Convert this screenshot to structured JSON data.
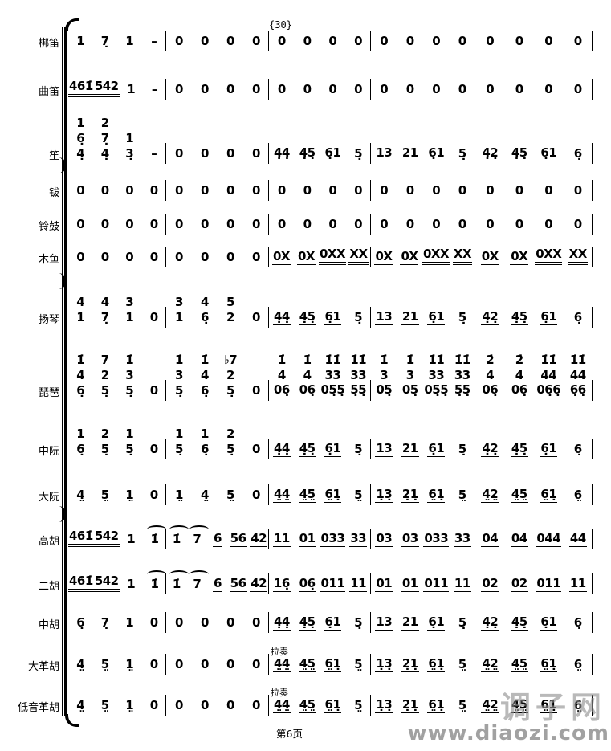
{
  "page": {
    "rehearsal_mark": "{30}",
    "footer": "第6页",
    "watermark_cn": "调子网",
    "watermark_url": "www.diaozi.com"
  },
  "score": {
    "rows": [
      {
        "label": "梆笛",
        "measures": [
          [
            [
              "1",
              "7̣",
              "1",
              "–"
            ]
          ],
          [
            [
              "0",
              "0",
              "0",
              "0"
            ]
          ],
          [
            [
              "0",
              "0",
              "0",
              "0"
            ]
          ],
          [
            [
              "0",
              "0",
              "0",
              "0"
            ]
          ],
          [
            [
              "0",
              "0",
              "0",
              "0"
            ]
          ]
        ]
      },
      {
        "label": "曲笛",
        "measures": [
          [
            [
              "461̇=",
              "542=",
              "1",
              "–"
            ]
          ],
          [
            [
              "0",
              "0",
              "0",
              "0"
            ]
          ],
          [
            [
              "0",
              "0",
              "0",
              "0"
            ]
          ],
          [
            [
              "0",
              "0",
              "0",
              "0"
            ]
          ],
          [
            [
              "0",
              "0",
              "0",
              "0"
            ]
          ]
        ]
      },
      {
        "label": "笙",
        "measures": [
          [
            [
              "1",
              "2",
              "",
              ""
            ],
            [
              "6̣",
              "7̣",
              "1",
              ""
            ],
            [
              "4̣",
              "4̣",
              "3̣",
              "–"
            ]
          ],
          [
            [
              "0",
              "0",
              "0",
              "0"
            ]
          ],
          [
            [
              "4̣4̣_",
              "4̣5̣_",
              "6̣1_",
              "5̣"
            ]
          ],
          [
            [
              "13_",
              "21_",
              "6̣1_",
              "5̣"
            ]
          ],
          [
            [
              "4̣2̣_",
              "4̣5̣_",
              "6̣1_",
              "6̣"
            ]
          ]
        ]
      },
      {
        "label": "钹",
        "measures": [
          [
            [
              "0",
              "0",
              "0",
              "0"
            ]
          ],
          [
            [
              "0",
              "0",
              "0",
              "0"
            ]
          ],
          [
            [
              "0",
              "0",
              "0",
              "0"
            ]
          ],
          [
            [
              "0",
              "0",
              "0",
              "0"
            ]
          ],
          [
            [
              "0",
              "0",
              "0",
              "0"
            ]
          ]
        ]
      },
      {
        "label": "铃鼓",
        "measures": [
          [
            [
              "0",
              "0",
              "0",
              "0"
            ]
          ],
          [
            [
              "0",
              "0",
              "0",
              "0"
            ]
          ],
          [
            [
              "0",
              "0",
              "0",
              "0"
            ]
          ],
          [
            [
              "0",
              "0",
              "0",
              "0"
            ]
          ],
          [
            [
              "0",
              "0",
              "0",
              "0"
            ]
          ]
        ]
      },
      {
        "label": "木鱼",
        "measures": [
          [
            [
              "0",
              "0",
              "0",
              "0"
            ]
          ],
          [
            [
              "0",
              "0",
              "0",
              "0"
            ]
          ],
          [
            [
              "0X_",
              "0X_",
              "0XX=",
              "XX="
            ]
          ],
          [
            [
              "0X_",
              "0X_",
              "0XX=",
              "XX="
            ]
          ],
          [
            [
              "0X_",
              "0X_",
              "0XX=",
              "XX="
            ]
          ]
        ]
      },
      {
        "label": "扬琴",
        "measures": [
          [
            [
              "4",
              "4",
              "3",
              ""
            ],
            [
              "1",
              "7̣",
              "1",
              "0"
            ]
          ],
          [
            [
              "3",
              "4",
              "5",
              ""
            ],
            [
              "1",
              "6̣",
              "2",
              "0"
            ]
          ],
          [
            [
              "4̣4̣_",
              "4̣5̣_",
              "6̣1_",
              "5̣"
            ]
          ],
          [
            [
              "13_",
              "21_",
              "6̣1_",
              "5̣"
            ]
          ],
          [
            [
              "4̣2̣_",
              "4̣5̣_",
              "6̣1_",
              "6̣"
            ]
          ]
        ]
      },
      {
        "label": "琵琶",
        "measures": [
          [
            [
              "1̇",
              "7",
              "1̇",
              ""
            ],
            [
              "4",
              "2",
              "3",
              ""
            ],
            [
              "6̣",
              "5̣",
              "5̣",
              "0"
            ]
          ],
          [
            [
              "1̇",
              "1̇",
              "♭7",
              ""
            ],
            [
              "3",
              "4",
              "2",
              ""
            ],
            [
              "5̣",
              "6̣",
              "5̣",
              "0"
            ]
          ],
          [
            [
              "1̇",
              "1̇",
              "1̇1̇",
              "1̇1̇"
            ],
            [
              "4",
              "4",
              "33",
              "33"
            ],
            [
              "06̣_",
              "06̣_",
              "05̣5̣_",
              "5̣5̣_"
            ]
          ],
          [
            [
              "1̇",
              "1̇",
              "1̇1̇",
              "1̇1̇"
            ],
            [
              "3",
              "3",
              "33",
              "33"
            ],
            [
              "05̣_",
              "05̣_",
              "05̣5̣_",
              "5̣5̣_"
            ]
          ],
          [
            [
              "2̇",
              "2̇",
              "1̇1̇",
              "1̇1̇"
            ],
            [
              "4",
              "4",
              "44",
              "44"
            ],
            [
              "06̣_",
              "06̣_",
              "06̣6̣_",
              "6̣6̣_"
            ]
          ]
        ]
      },
      {
        "label": "中阮",
        "measures": [
          [
            [
              "1",
              "2",
              "1",
              ""
            ],
            [
              "6̣",
              "5̣",
              "5̣",
              "0"
            ]
          ],
          [
            [
              "1",
              "1",
              "2",
              ""
            ],
            [
              "5̣",
              "6̣",
              "5̣",
              "0"
            ]
          ],
          [
            [
              "4̣4̣_",
              "4̣5̣_",
              "6̣1_",
              "5̣"
            ]
          ],
          [
            [
              "13_",
              "21_",
              "6̣1_",
              "5̣"
            ]
          ],
          [
            [
              "4̣2̣_",
              "4̣5̣_",
              "6̣1_",
              "6̣"
            ]
          ]
        ]
      },
      {
        "label": "大阮",
        "measures": [
          [
            [
              "4̤",
              "5̤",
              "1̤",
              "0"
            ]
          ],
          [
            [
              "1̤",
              "4̤",
              "5̤",
              "0"
            ]
          ],
          [
            [
              "4̤4̤_",
              "4̤5̤_",
              "6̤1̣_",
              "5̤"
            ]
          ],
          [
            [
              "1̣3̣_",
              "2̣1̣_",
              "6̤1̣_",
              "5̤"
            ]
          ],
          [
            [
              "4̤2̤_",
              "4̤5̤_",
              "6̤1̣_",
              "6̤"
            ]
          ]
        ]
      },
      {
        "label": "高胡",
        "measures": [
          [
            [
              "461̇=",
              "542=",
              "1",
              "(1̇"
            ]
          ],
          [
            [
              "(1̇",
              "(7",
              "6_",
              "56_",
              "42_"
            ]
          ],
          [
            [
              "11_",
              "01_",
              "033_",
              "33_"
            ]
          ],
          [
            [
              "03_",
              "03_",
              "033_",
              "33_"
            ]
          ],
          [
            [
              "04_",
              "04_",
              "044_",
              "44_"
            ]
          ]
        ]
      },
      {
        "label": "二胡",
        "measures": [
          [
            [
              "461̇=",
              "542=",
              "1",
              "(1̇"
            ]
          ],
          [
            [
              "(1̇",
              "(7",
              "6_",
              "56_",
              "42_"
            ]
          ],
          [
            [
              "16̣_",
              "06̣_",
              "011_",
              "11_"
            ]
          ],
          [
            [
              "01_",
              "01_",
              "011_",
              "11_"
            ]
          ],
          [
            [
              "02_",
              "02_",
              "011_",
              "11_"
            ]
          ]
        ]
      },
      {
        "label": "中胡",
        "measures": [
          [
            [
              "6̣",
              "7̣",
              "1",
              "0"
            ]
          ],
          [
            [
              "0",
              "0",
              "0",
              "0"
            ]
          ],
          [
            [
              "4̣4̣_",
              "4̣5̣_",
              "6̣1_",
              "5̣"
            ]
          ],
          [
            [
              "13_",
              "21_",
              "6̣1_",
              "5̣"
            ]
          ],
          [
            [
              "4̣2̣_",
              "4̣5̣_",
              "6̣1_",
              "6̣"
            ]
          ]
        ]
      },
      {
        "label": "大革胡",
        "annotations": [
          {
            "measure": 2,
            "text": "拉奏"
          }
        ],
        "measures": [
          [
            [
              "4̤",
              "5̤",
              "1̤",
              "0"
            ]
          ],
          [
            [
              "0",
              "0",
              "0",
              "0"
            ]
          ],
          [
            [
              "4̤4̤_",
              "4̤5̤_",
              "6̤1̣_",
              "5̤"
            ]
          ],
          [
            [
              "1̣3̣_",
              "2̣1̣_",
              "6̤1̣_",
              "5̤"
            ]
          ],
          [
            [
              "4̤2̤_",
              "4̤5̤_",
              "6̤1̣_",
              "6̤"
            ]
          ]
        ]
      },
      {
        "label": "低音革胡",
        "annotations": [
          {
            "measure": 2,
            "text": "拉奏"
          }
        ],
        "measures": [
          [
            [
              "4̤",
              "5̤",
              "1̤",
              "0"
            ]
          ],
          [
            [
              "0",
              "0",
              "0",
              "0"
            ]
          ],
          [
            [
              "4̤4̤_",
              "4̤5̤_",
              "6̤1̣_",
              "5̤"
            ]
          ],
          [
            [
              "1̣3̣_",
              "2̣1̣_",
              "6̤1̣_",
              "5̤"
            ]
          ],
          [
            [
              "4̤2̤_",
              "4̤5̤_",
              "6̤1̣_",
              "6̤"
            ]
          ]
        ]
      }
    ]
  }
}
